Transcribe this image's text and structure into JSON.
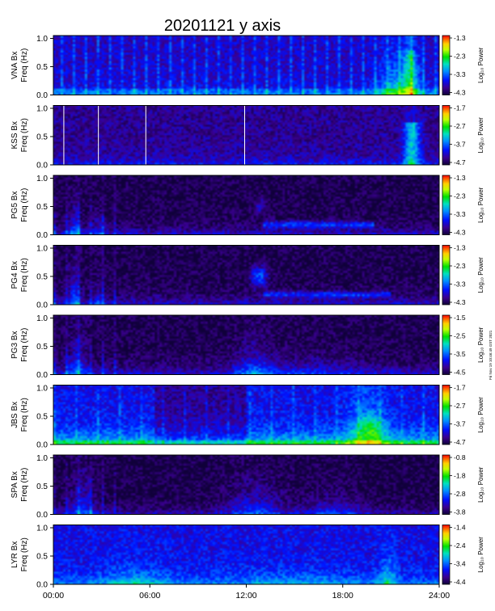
{
  "chart_data": {
    "type": "heatmap",
    "title": "20201121 y axis",
    "timestamp_note": "Fri Nov 19 10:46:49 GST 2021",
    "x_ticks": [
      "00:00",
      "06:00",
      "12:00",
      "18:00",
      "24:00"
    ],
    "y_ticks": [
      "0.0",
      "0.5",
      "1.0"
    ],
    "ylim": [
      0,
      1.05
    ],
    "colorbar_label": "Log₁₀ Power",
    "panels": [
      {
        "ylabel": "VNA Bx",
        "ylabel2": "Freq (Hz)",
        "cbar_ticks": [
          "-1.3",
          "-2.3",
          "-3.3",
          "-4.3"
        ],
        "style": "vna"
      },
      {
        "ylabel": "KSS Bx",
        "ylabel2": "Freq (Hz)",
        "cbar_ticks": [
          "-1.7",
          "-2.7",
          "-3.7",
          "-4.7"
        ],
        "style": "kss"
      },
      {
        "ylabel": "PG5 Bx",
        "ylabel2": "Freq (Hz)",
        "cbar_ticks": [
          "-1.3",
          "-2.3",
          "-3.3",
          "-4.3"
        ],
        "style": "pg5"
      },
      {
        "ylabel": "PG4 Bx",
        "ylabel2": "Freq (Hz)",
        "cbar_ticks": [
          "-1.3",
          "-2.3",
          "-3.3",
          "-4.3"
        ],
        "style": "pg4"
      },
      {
        "ylabel": "PG3 Bx",
        "ylabel2": "Freq (Hz)",
        "cbar_ticks": [
          "-1.5",
          "-2.5",
          "-3.5",
          "-4.5"
        ],
        "style": "pg3"
      },
      {
        "ylabel": "JBS Bx",
        "ylabel2": "Freq (Hz)",
        "cbar_ticks": [
          "-1.7",
          "-2.7",
          "-3.7",
          "-4.7"
        ],
        "style": "jbs"
      },
      {
        "ylabel": "SPA Bx",
        "ylabel2": "Freq (Hz)",
        "cbar_ticks": [
          "-0.8",
          "-1.8",
          "-2.8",
          "-3.8"
        ],
        "style": "spa"
      },
      {
        "ylabel": "LYR Bx",
        "ylabel2": "Freq (Hz)",
        "cbar_ticks": [
          "-1.4",
          "-2.4",
          "-3.4",
          "-4.4"
        ],
        "style": "lyr"
      }
    ]
  }
}
